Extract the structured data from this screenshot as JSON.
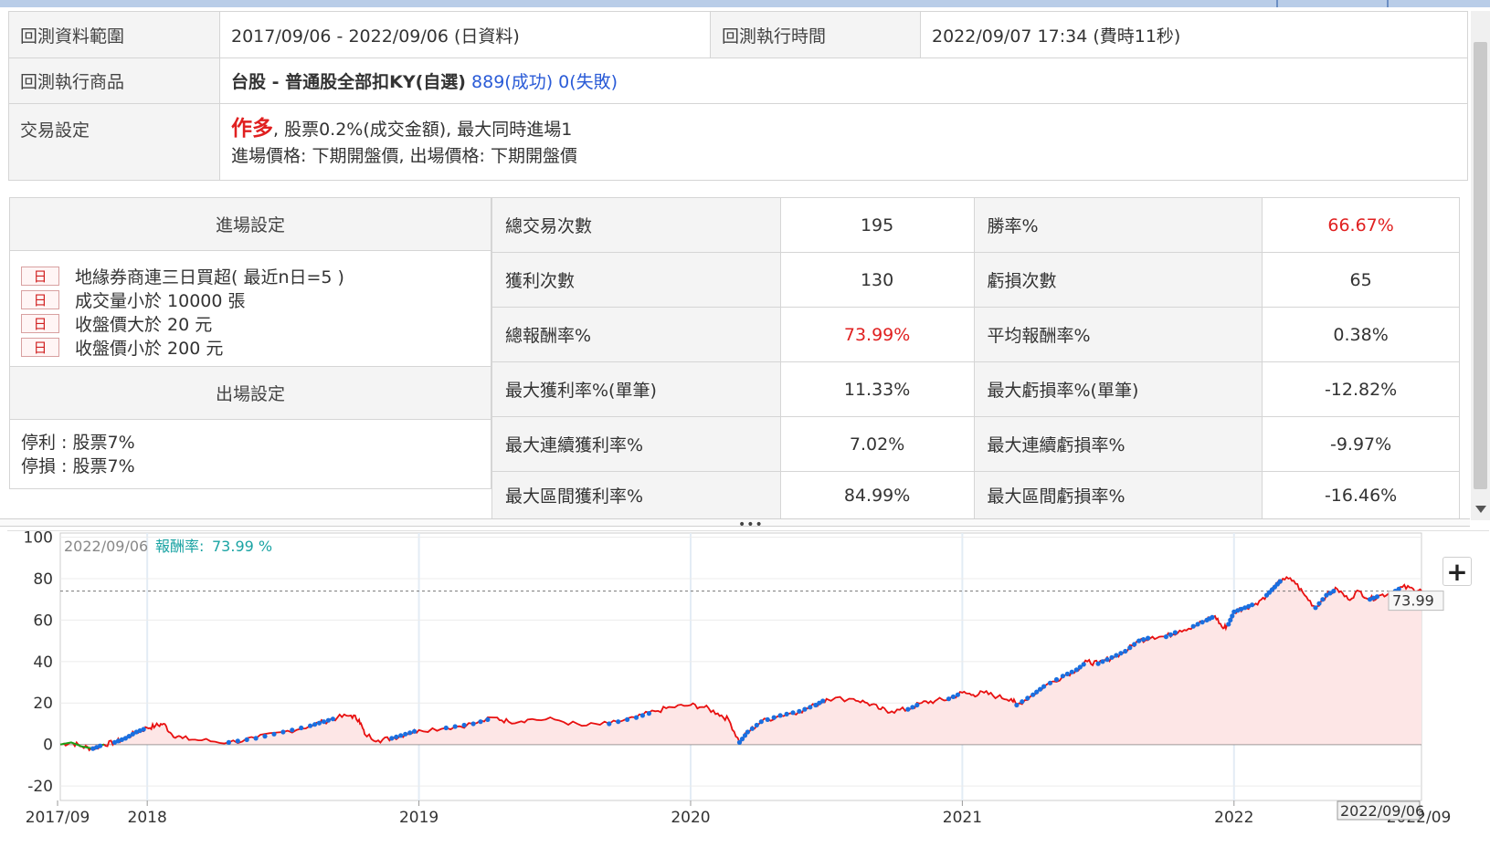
{
  "info": {
    "range_label": "回測資料範圍",
    "range_value": "2017/09/06 - 2022/09/06 (日資料)",
    "exec_time_label": "回測執行時間",
    "exec_time_value": "2022/09/07 17:34 (費時11秒)",
    "product_label": "回測執行商品",
    "product_name": "台股 - 普通股全部扣KY(自選)",
    "product_success": "889(成功)",
    "product_fail": "0(失敗)",
    "trade_label": "交易設定",
    "trade_direction": "作多",
    "trade_line1_rest": ", 股票0.2%(成交金額), 最大同時進場1",
    "trade_line2": "進場價格: 下期開盤價, 出場價格: 下期開盤價"
  },
  "entry": {
    "title": "進場設定",
    "badge": "日",
    "conditions": [
      "地緣券商連三日買超( 最近n日=5 )",
      "成交量小於 10000 張",
      "收盤價大於 20 元",
      "收盤價小於 200 元"
    ]
  },
  "exit": {
    "title": "出場設定",
    "items": [
      "停利 : 股票7%",
      "停損 : 股票7%"
    ]
  },
  "stats": [
    {
      "l1": "總交易次數",
      "v1": "195",
      "l2": "勝率%",
      "v2": "66.67%",
      "v2_red": true
    },
    {
      "l1": "獲利次數",
      "v1": "130",
      "l2": "虧損次數",
      "v2": "65"
    },
    {
      "l1": "總報酬率%",
      "v1": "73.99%",
      "v1_red": true,
      "l2": "平均報酬率%",
      "v2": "0.38%"
    },
    {
      "l1": "最大獲利率%(單筆)",
      "v1": "11.33%",
      "l2": "最大虧損率%(單筆)",
      "v2": "-12.82%"
    },
    {
      "l1": "最大連續獲利率%",
      "v1": "7.02%",
      "l2": "最大連續虧損率%",
      "v2": "-9.97%"
    },
    {
      "l1": "最大區間獲利率%",
      "v1": "84.99%",
      "l2": "最大區間虧損率%",
      "v2": "-16.46%"
    }
  ],
  "splitter_dots": "•••",
  "chart_data": {
    "type": "area",
    "header_date": "2022/09/06",
    "header_label": "報酬率:",
    "header_value": "73.99 %",
    "last_value_label": "73.99",
    "cursor_date_label": "2022/09/06",
    "y_ticks": [
      100,
      80,
      60,
      40,
      20,
      0,
      -20
    ],
    "ylim": [
      -27,
      102
    ],
    "x_ticks": [
      {
        "label": "2017/09",
        "t": 2017.67
      },
      {
        "label": "2018",
        "t": 2018.0
      },
      {
        "label": "2019",
        "t": 2019.0
      },
      {
        "label": "2020",
        "t": 2020.0
      },
      {
        "label": "2021",
        "t": 2021.0
      },
      {
        "label": "2022",
        "t": 2022.0
      },
      {
        "label": "2022/09",
        "t": 2022.68
      }
    ],
    "xlim": [
      2017.68,
      2022.69
    ],
    "reference_value": 73.99,
    "series": [
      {
        "points": [
          [
            2017.68,
            0
          ],
          [
            2017.72,
            1
          ],
          [
            2017.76,
            -1
          ],
          [
            2017.8,
            -2
          ],
          [
            2017.84,
            0
          ],
          [
            2017.88,
            1
          ],
          [
            2017.92,
            3
          ],
          [
            2017.96,
            6
          ],
          [
            2018.0,
            8
          ],
          [
            2018.03,
            9
          ],
          [
            2018.06,
            10
          ],
          [
            2018.09,
            5
          ],
          [
            2018.13,
            3
          ],
          [
            2018.2,
            2
          ],
          [
            2018.3,
            1
          ],
          [
            2018.4,
            3
          ],
          [
            2018.5,
            6
          ],
          [
            2018.6,
            9
          ],
          [
            2018.65,
            11
          ],
          [
            2018.7,
            13
          ],
          [
            2018.75,
            14
          ],
          [
            2018.78,
            12
          ],
          [
            2018.8,
            5
          ],
          [
            2018.85,
            2
          ],
          [
            2018.9,
            3
          ],
          [
            2018.95,
            5
          ],
          [
            2019.0,
            7
          ],
          [
            2019.1,
            8
          ],
          [
            2019.2,
            10
          ],
          [
            2019.28,
            13
          ],
          [
            2019.33,
            11
          ],
          [
            2019.4,
            12
          ],
          [
            2019.5,
            12
          ],
          [
            2019.6,
            9
          ],
          [
            2019.7,
            10
          ],
          [
            2019.8,
            13
          ],
          [
            2019.87,
            16
          ],
          [
            2019.93,
            18
          ],
          [
            2020.0,
            19
          ],
          [
            2020.05,
            18
          ],
          [
            2020.1,
            15
          ],
          [
            2020.14,
            12
          ],
          [
            2020.18,
            1
          ],
          [
            2020.21,
            6
          ],
          [
            2020.26,
            11
          ],
          [
            2020.33,
            14
          ],
          [
            2020.4,
            16
          ],
          [
            2020.46,
            19
          ],
          [
            2020.5,
            22
          ],
          [
            2020.6,
            22
          ],
          [
            2020.65,
            20
          ],
          [
            2020.7,
            17
          ],
          [
            2020.74,
            16
          ],
          [
            2020.8,
            17
          ],
          [
            2020.85,
            20
          ],
          [
            2020.9,
            21
          ],
          [
            2020.95,
            22
          ],
          [
            2021.0,
            25
          ],
          [
            2021.04,
            24
          ],
          [
            2021.08,
            25
          ],
          [
            2021.13,
            23
          ],
          [
            2021.18,
            22
          ],
          [
            2021.2,
            19
          ],
          [
            2021.26,
            24
          ],
          [
            2021.3,
            28
          ],
          [
            2021.37,
            33
          ],
          [
            2021.42,
            36
          ],
          [
            2021.46,
            40
          ],
          [
            2021.5,
            39
          ],
          [
            2021.55,
            42
          ],
          [
            2021.6,
            45
          ],
          [
            2021.65,
            50
          ],
          [
            2021.7,
            52
          ],
          [
            2021.75,
            52
          ],
          [
            2021.8,
            55
          ],
          [
            2021.85,
            57
          ],
          [
            2021.9,
            60
          ],
          [
            2021.93,
            62
          ],
          [
            2021.96,
            56
          ],
          [
            2021.98,
            58
          ],
          [
            2022.0,
            64
          ],
          [
            2022.04,
            66
          ],
          [
            2022.08,
            68
          ],
          [
            2022.12,
            72
          ],
          [
            2022.15,
            76
          ],
          [
            2022.18,
            80
          ],
          [
            2022.22,
            79
          ],
          [
            2022.26,
            72
          ],
          [
            2022.3,
            66
          ],
          [
            2022.34,
            72
          ],
          [
            2022.38,
            75
          ],
          [
            2022.42,
            70
          ],
          [
            2022.46,
            74
          ],
          [
            2022.5,
            70
          ],
          [
            2022.54,
            72
          ],
          [
            2022.58,
            73
          ],
          [
            2022.62,
            76
          ],
          [
            2022.66,
            75
          ],
          [
            2022.69,
            74
          ]
        ]
      }
    ],
    "colors": {
      "line": "#e81010",
      "fill": "#fde6e6",
      "early_line": "#1aa31a",
      "entry_dots": "#1a6fe0",
      "grid": "#e3ecf5",
      "header_value": "#1aa3a3"
    }
  }
}
